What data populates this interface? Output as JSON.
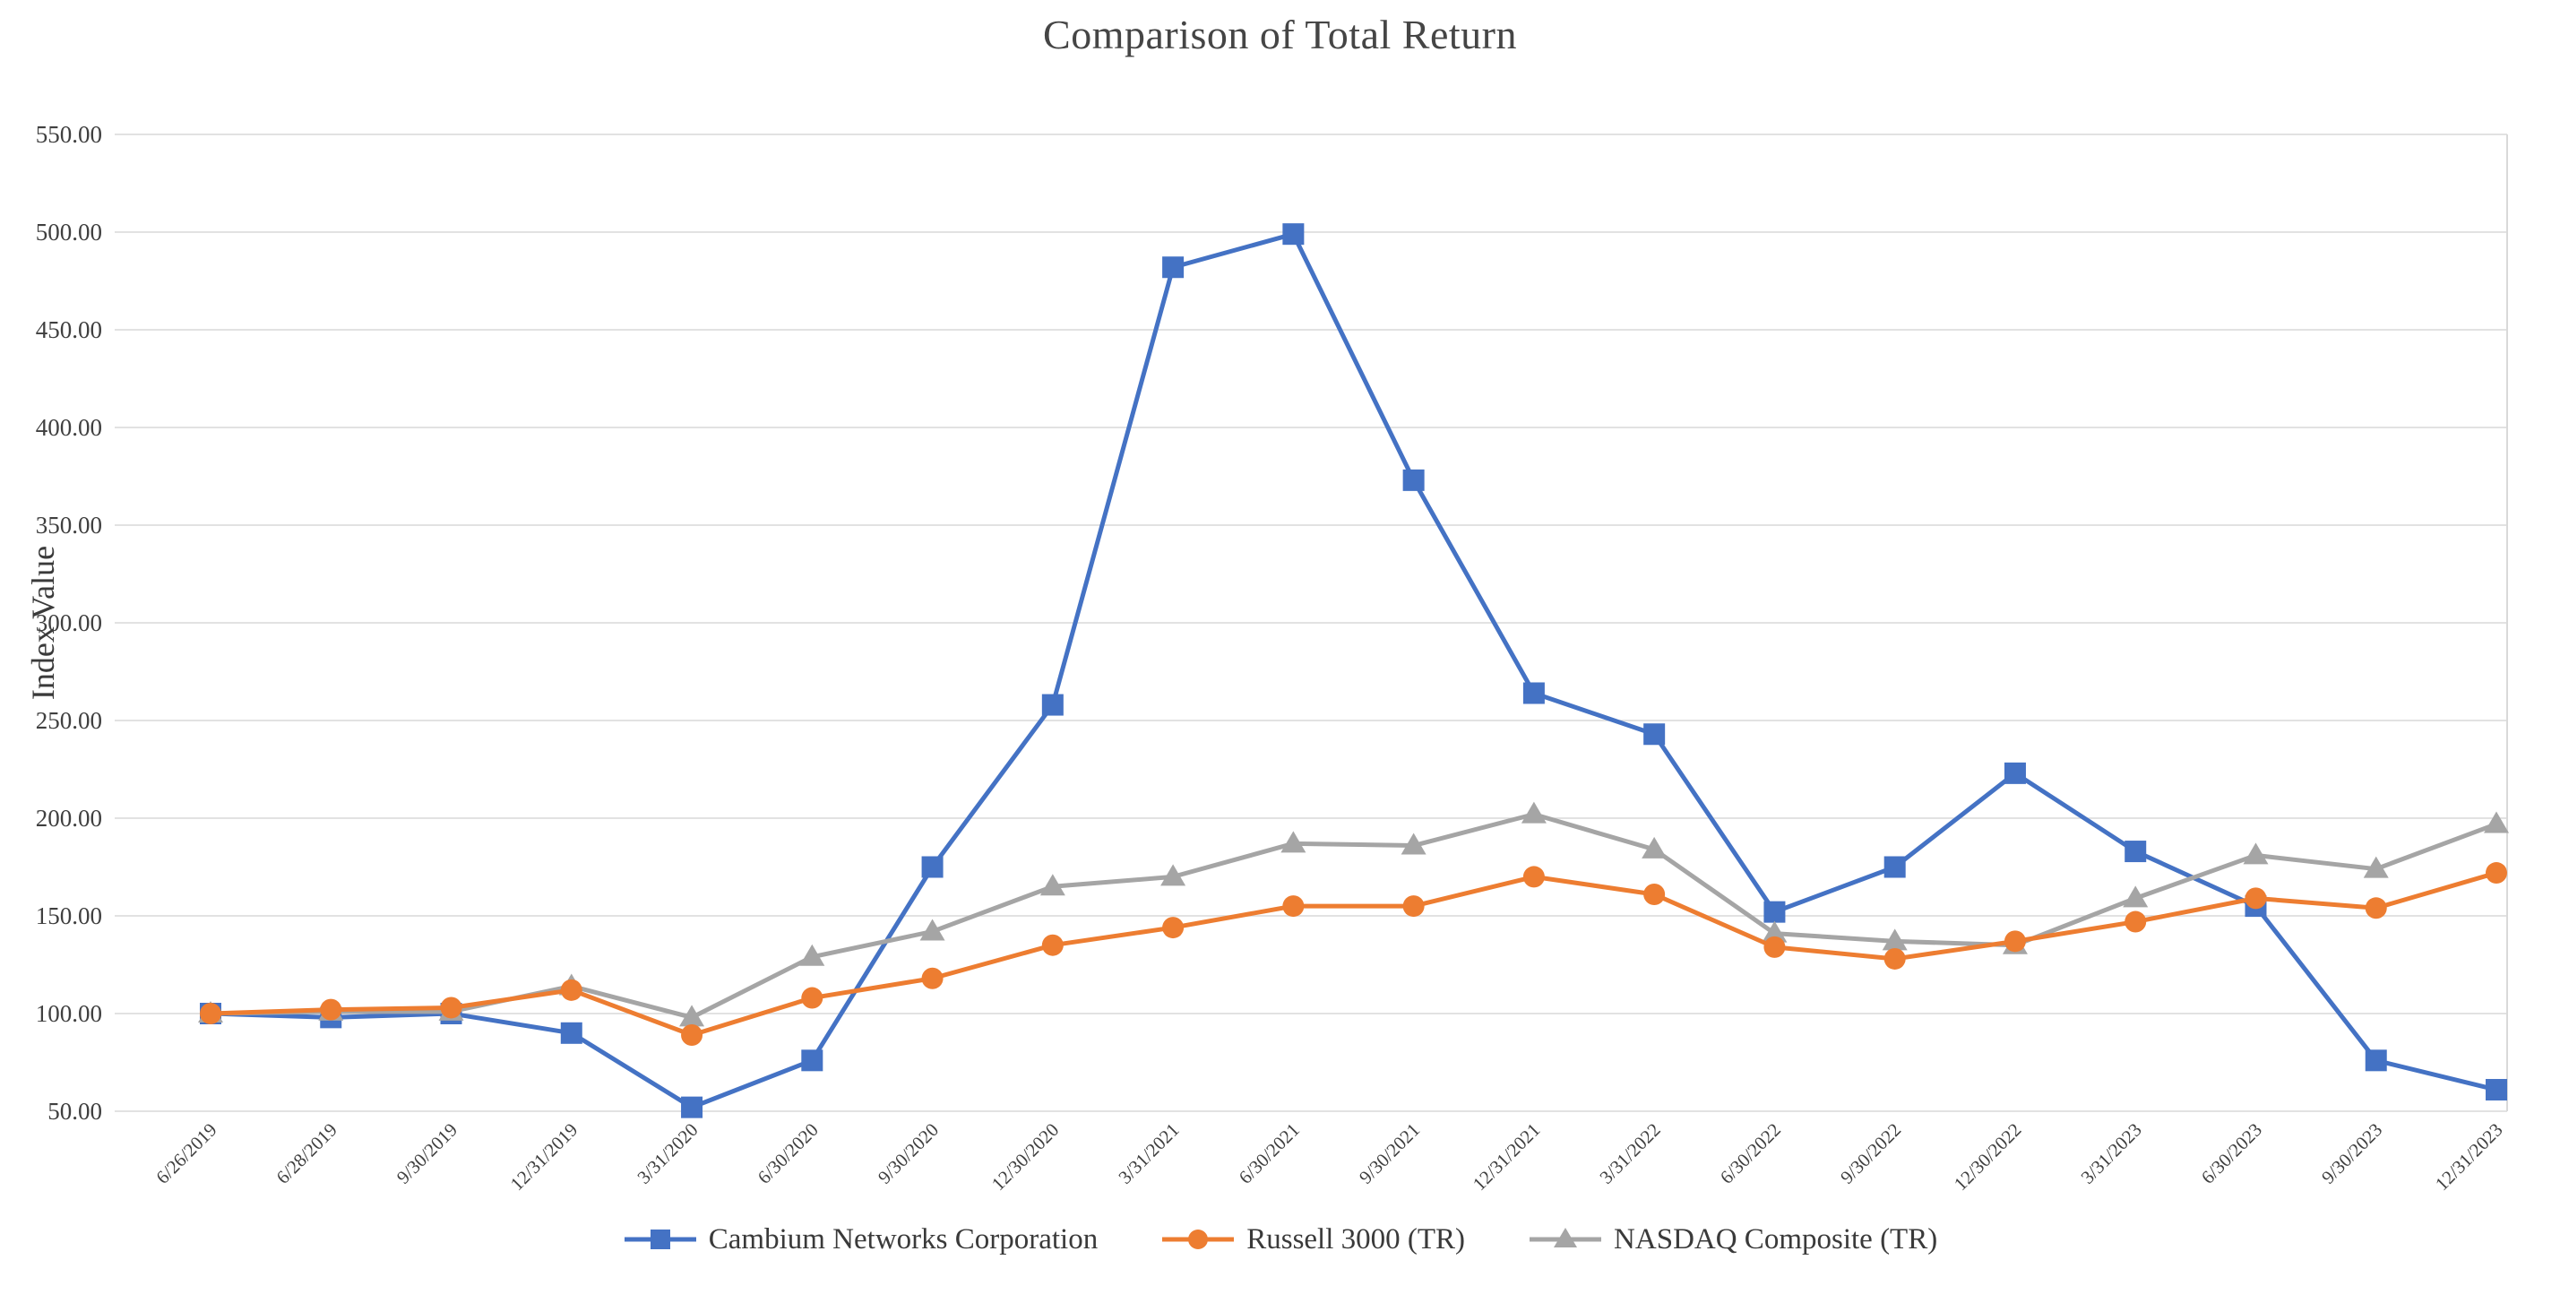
{
  "chart_data": {
    "type": "line",
    "title": "Comparison of Total Return",
    "ylabel": "Index Value",
    "xlabel": "",
    "ylim": [
      50,
      550
    ],
    "ytick_step": 50,
    "grid": true,
    "legend_position": "bottom",
    "gridline_color": "#D9D9D9",
    "axis_text_color": "#3f3f3f",
    "categories": [
      "6/26/2019",
      "6/28/2019",
      "9/30/2019",
      "12/31/2019",
      "3/31/2020",
      "6/30/2020",
      "9/30/2020",
      "12/30/2020",
      "3/31/2021",
      "6/30/2021",
      "9/30/2021",
      "12/31/2021",
      "3/31/2022",
      "6/30/2022",
      "9/30/2022",
      "12/30/2022",
      "3/31/2023",
      "6/30/2023",
      "9/30/2023",
      "12/31/2023"
    ],
    "series": [
      {
        "name": "Cambium Networks Corporation",
        "color": "#4472C4",
        "marker": "square",
        "values": [
          100,
          98,
          100,
          90,
          52,
          76,
          175,
          258,
          482,
          499,
          373,
          264,
          243,
          152,
          175,
          223,
          183,
          155,
          76,
          61
        ]
      },
      {
        "name": "Russell 3000 (TR)",
        "color": "#ED7D31",
        "marker": "circle",
        "values": [
          100,
          102,
          103,
          112,
          89,
          108,
          118,
          135,
          144,
          155,
          155,
          170,
          161,
          134,
          128,
          137,
          147,
          159,
          154,
          172
        ]
      },
      {
        "name": "NASDAQ Composite (TR)",
        "color": "#A5A5A5",
        "marker": "triangle",
        "values": [
          100,
          101,
          101,
          114,
          98,
          129,
          142,
          165,
          170,
          187,
          186,
          202,
          184,
          141,
          137,
          135,
          159,
          181,
          174,
          197
        ]
      }
    ],
    "draw_order": [
      0,
      2,
      1
    ]
  }
}
